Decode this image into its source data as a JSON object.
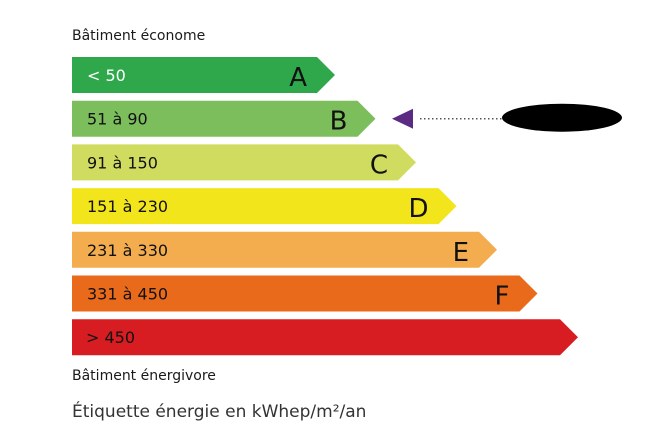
{
  "header": {
    "title": "Bâtiment économe"
  },
  "footer": {
    "label": "Bâtiment énergivore",
    "unit": "Étiquette énergie en kWhep/m²/an"
  },
  "classes": [
    {
      "range": "< 50",
      "letter": "A",
      "color": "#2ea84a",
      "text_color": "#ffffff"
    },
    {
      "range": "51 à 90",
      "letter": "B",
      "color": "#7cbd5c",
      "text_color": "#111111"
    },
    {
      "range": "91 à 150",
      "letter": "C",
      "color": "#cfdc5f",
      "text_color": "#111111"
    },
    {
      "range": "151 à 230",
      "letter": "D",
      "color": "#f2e51c",
      "text_color": "#111111"
    },
    {
      "range": "231 à 330",
      "letter": "E",
      "color": "#f4ad4e",
      "text_color": "#111111"
    },
    {
      "range": "331 à 450",
      "letter": "F",
      "color": "#ea6a1c",
      "text_color": "#111111"
    },
    {
      "range": "> 450",
      "letter": "",
      "color": "#d81d22",
      "text_color": "#111111"
    }
  ],
  "indicator": {
    "class": "B",
    "color": "#5b2a83"
  }
}
